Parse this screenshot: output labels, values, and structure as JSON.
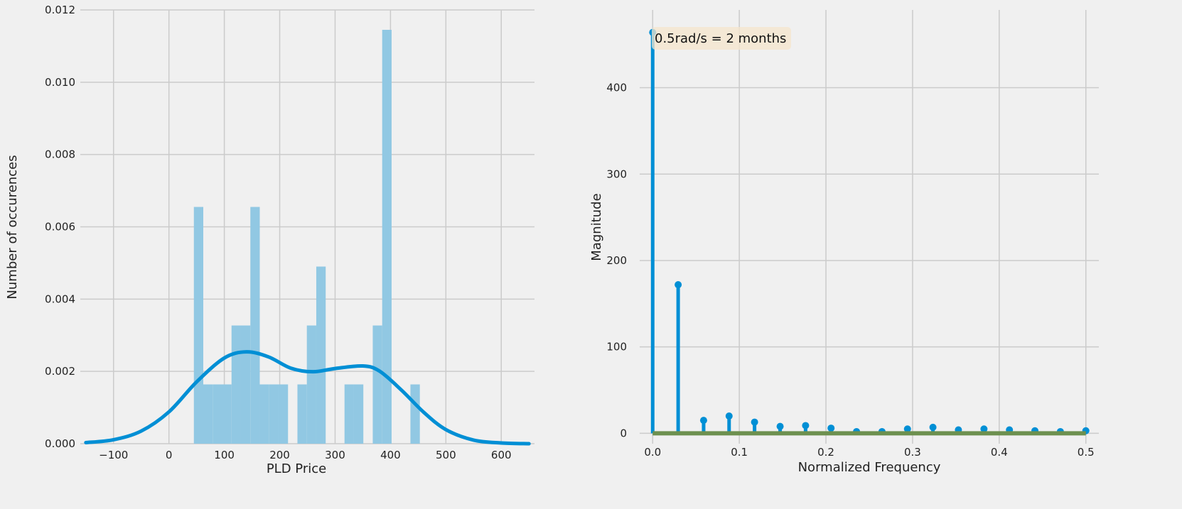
{
  "chart_data": [
    {
      "type": "bar",
      "title": "",
      "xlabel": "PLD Price",
      "ylabel": "Number of occurences",
      "xlim": [
        -160,
        660
      ],
      "ylim": [
        0,
        0.012
      ],
      "xticks": [
        -100,
        0,
        100,
        200,
        300,
        400,
        500,
        600
      ],
      "xtick_labels": [
        "−100",
        "0",
        "100",
        "200",
        "300",
        "400",
        "500",
        "600"
      ],
      "yticks": [
        0,
        0.002,
        0.004,
        0.006,
        0.008,
        0.01,
        0.012
      ],
      "ytick_labels": [
        "0.000",
        "0.002",
        "0.004",
        "0.006",
        "0.008",
        "0.010",
        "0.012"
      ],
      "grid": true,
      "histogram": {
        "bin_width": 17,
        "bin_left_edges": [
          45,
          62,
          79,
          96,
          113,
          130,
          147,
          164,
          181,
          198,
          232,
          249,
          266,
          317,
          334,
          368,
          385,
          436
        ],
        "density": [
          0.00655,
          0.00164,
          0.00164,
          0.00164,
          0.00327,
          0.00327,
          0.00655,
          0.00164,
          0.00164,
          0.00164,
          0.00164,
          0.00327,
          0.0049,
          0.00164,
          0.00164,
          0.00327,
          0.01145,
          0.00164
        ],
        "color": "#91c8e3"
      },
      "kde": {
        "x": [
          -150,
          -100,
          -50,
          0,
          50,
          100,
          140,
          180,
          220,
          260,
          300,
          350,
          380,
          420,
          460,
          500,
          550,
          600,
          650
        ],
        "y": [
          3e-05,
          0.00011,
          0.00035,
          0.00088,
          0.00171,
          0.00237,
          0.00254,
          0.0024,
          0.00209,
          0.00199,
          0.00208,
          0.00215,
          0.00201,
          0.00148,
          0.00087,
          0.00039,
          0.0001,
          2e-05,
          0.0
        ],
        "color": "#008fd5"
      }
    },
    {
      "type": "stem",
      "title": "",
      "xlabel": "Normalized Frequency",
      "ylabel": "Magnitude",
      "xlim": [
        -0.015,
        0.515
      ],
      "ylim": [
        -12,
        490
      ],
      "xticks": [
        0,
        0.1,
        0.2,
        0.3,
        0.4,
        0.5
      ],
      "xtick_labels": [
        "0.0",
        "0.1",
        "0.2",
        "0.3",
        "0.4",
        "0.5"
      ],
      "yticks": [
        0,
        100,
        200,
        300,
        400
      ],
      "ytick_labels": [
        "0",
        "100",
        "200",
        "300",
        "400"
      ],
      "grid": true,
      "x": [
        0.0,
        0.0294,
        0.0588,
        0.0882,
        0.1176,
        0.1471,
        0.1765,
        0.2059,
        0.2353,
        0.2647,
        0.2941,
        0.3235,
        0.3529,
        0.3824,
        0.4118,
        0.4412,
        0.4706,
        0.5
      ],
      "y": [
        464,
        172,
        15,
        20,
        13,
        8,
        9,
        6,
        2,
        2,
        5,
        7,
        4,
        5,
        4,
        3,
        2,
        3
      ],
      "stem_color": "#008fd5",
      "baseline_color": "#6d904f",
      "annotation": {
        "text": "0.5rad/s = 2 months",
        "background": "#f5e6cc"
      }
    }
  ]
}
